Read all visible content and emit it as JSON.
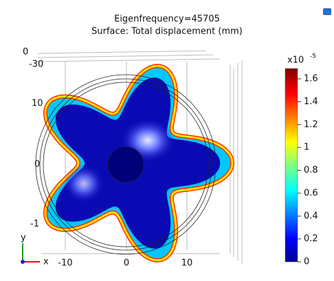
{
  "plot": {
    "title": "Eigenfrequency=45705",
    "subtitle": "Surface: Total displacement (mm)"
  },
  "colorbar": {
    "multiplier": "x10",
    "exponent": "-5",
    "range": [
      0,
      1.69
    ],
    "ticks": [
      1.6,
      1.4,
      1.2,
      1,
      0.8,
      0.6,
      0.4,
      0.2,
      0
    ]
  },
  "axes": {
    "left_labels": [
      "0",
      "-30",
      "10",
      "0",
      "-1"
    ],
    "bottom_labels": [
      "-10",
      "0",
      "10"
    ],
    "triad": {
      "y": "y",
      "x": "x"
    }
  }
}
